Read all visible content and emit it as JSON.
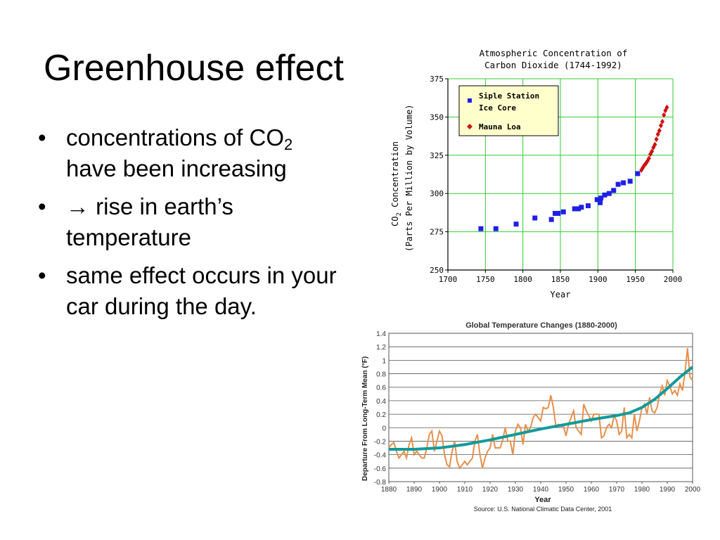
{
  "slide": {
    "title": "Greenhouse effect",
    "bullets": [
      {
        "text_before": "concentrations of CO",
        "subscript": "2",
        "text_after": " have been increasing"
      },
      {
        "arrow": "→",
        "text": " rise in earth’s temperature"
      },
      {
        "text": "same effect occurs in your car during the day."
      }
    ],
    "bullet_glyph": "•"
  },
  "chart_data": [
    {
      "type": "scatter",
      "title_lines": [
        "Atmospheric Concentration of",
        "Carbon Dioxide (1744-1992)"
      ],
      "xlabel": "Year",
      "ylabel_line1": "CO",
      "ylabel_sub": "2",
      "ylabel_line1_rest": " Concentration",
      "ylabel_line2": "(Parts Per Million by Volume)",
      "xlim": [
        1700,
        2000
      ],
      "ylim": [
        250,
        375
      ],
      "xticks": [
        1700,
        1750,
        1800,
        1850,
        1900,
        1950,
        2000
      ],
      "yticks": [
        250,
        275,
        300,
        325,
        350,
        375
      ],
      "grid": true,
      "grid_color": "#33cc33",
      "legend_position": "top-left",
      "legend_bg": "#ffffcc",
      "series": [
        {
          "name_lines": [
            "Siple Station",
            "Ice Core"
          ],
          "marker": "square",
          "color": "#1f1fe6",
          "points": [
            [
              1744,
              277
            ],
            [
              1764,
              277
            ],
            [
              1791,
              280
            ],
            [
              1816,
              284
            ],
            [
              1838,
              283
            ],
            [
              1843,
              287
            ],
            [
              1847,
              287
            ],
            [
              1854,
              288
            ],
            [
              1869,
              290
            ],
            [
              1874,
              290
            ],
            [
              1878,
              291
            ],
            [
              1887,
              292
            ],
            [
              1899,
              296
            ],
            [
              1903,
              294
            ],
            [
              1904,
              297
            ],
            [
              1909,
              299
            ],
            [
              1915,
              300
            ],
            [
              1921,
              302
            ],
            [
              1927,
              306
            ],
            [
              1934,
              307
            ],
            [
              1943,
              308
            ],
            [
              1953,
              313
            ]
          ]
        },
        {
          "name": "Mauna Loa",
          "marker": "diamond",
          "color": "#cc1111",
          "points": [
            [
              1958,
              315.3
            ],
            [
              1960,
              316.9
            ],
            [
              1962,
              318.5
            ],
            [
              1964,
              319.6
            ],
            [
              1966,
              321.1
            ],
            [
              1968,
              322.9
            ],
            [
              1970,
              325.7
            ],
            [
              1972,
              327.5
            ],
            [
              1974,
              330.1
            ],
            [
              1976,
              332.0
            ],
            [
              1978,
              335.4
            ],
            [
              1980,
              338.7
            ],
            [
              1982,
              341.1
            ],
            [
              1984,
              344.4
            ],
            [
              1986,
              347.0
            ],
            [
              1988,
              351.3
            ],
            [
              1990,
              354.2
            ],
            [
              1992,
              356.3
            ]
          ]
        }
      ]
    },
    {
      "type": "line",
      "title": "Global Temperature Changes (1880-2000)",
      "xlabel": "Year",
      "ylabel": "Departure From Long-Term Mean (°F)",
      "source": "Source: U.S. National Climatic Data Center, 2001",
      "xlim": [
        1880,
        2000
      ],
      "ylim": [
        -0.8,
        1.4
      ],
      "xticks": [
        1880,
        1890,
        1900,
        1910,
        1920,
        1930,
        1940,
        1950,
        1960,
        1970,
        1980,
        1990,
        2000
      ],
      "ytick_labels": [
        "1.4",
        "1.2",
        "1",
        "0.8",
        "0.6",
        "0.4",
        "0.2",
        "0",
        "-0.2",
        "-0.4",
        "-0.6",
        "-0.8"
      ],
      "grid": true,
      "annual": {
        "color": "#e8904a",
        "x": [
          1880,
          1881,
          1882,
          1883,
          1884,
          1885,
          1886,
          1887,
          1888,
          1889,
          1890,
          1891,
          1892,
          1893,
          1894,
          1895,
          1896,
          1897,
          1898,
          1899,
          1900,
          1901,
          1902,
          1903,
          1904,
          1905,
          1906,
          1907,
          1908,
          1909,
          1910,
          1911,
          1912,
          1913,
          1914,
          1915,
          1916,
          1917,
          1918,
          1919,
          1920,
          1921,
          1922,
          1923,
          1924,
          1925,
          1926,
          1927,
          1928,
          1929,
          1930,
          1931,
          1932,
          1933,
          1934,
          1935,
          1936,
          1937,
          1938,
          1939,
          1940,
          1941,
          1942,
          1943,
          1944,
          1945,
          1946,
          1947,
          1948,
          1949,
          1950,
          1951,
          1952,
          1953,
          1954,
          1955,
          1956,
          1957,
          1958,
          1959,
          1960,
          1961,
          1962,
          1963,
          1964,
          1965,
          1966,
          1967,
          1968,
          1969,
          1970,
          1971,
          1972,
          1973,
          1974,
          1975,
          1976,
          1977,
          1978,
          1979,
          1980,
          1981,
          1982,
          1983,
          1984,
          1985,
          1986,
          1987,
          1988,
          1989,
          1990,
          1991,
          1992,
          1993,
          1994,
          1995,
          1996,
          1997,
          1998,
          1999,
          2000
        ],
        "y": [
          -0.3,
          -0.25,
          -0.22,
          -0.35,
          -0.45,
          -0.4,
          -0.35,
          -0.45,
          -0.25,
          -0.15,
          -0.4,
          -0.35,
          -0.4,
          -0.45,
          -0.45,
          -0.3,
          -0.1,
          -0.05,
          -0.35,
          -0.2,
          -0.05,
          -0.12,
          -0.4,
          -0.55,
          -0.58,
          -0.35,
          -0.2,
          -0.5,
          -0.6,
          -0.55,
          -0.5,
          -0.55,
          -0.5,
          -0.45,
          -0.2,
          -0.1,
          -0.4,
          -0.6,
          -0.45,
          -0.35,
          -0.3,
          -0.1,
          -0.3,
          -0.3,
          -0.3,
          -0.18,
          0.0,
          -0.2,
          -0.2,
          -0.4,
          -0.05,
          0.05,
          0.0,
          -0.25,
          0.05,
          -0.05,
          0.0,
          0.15,
          0.2,
          0.15,
          0.1,
          0.3,
          0.28,
          0.3,
          0.48,
          0.3,
          0.02,
          0.05,
          0.02,
          0.02,
          -0.12,
          0.05,
          0.15,
          0.25,
          0.0,
          -0.05,
          -0.1,
          0.35,
          0.25,
          0.18,
          0.1,
          0.2,
          0.2,
          0.2,
          -0.15,
          -0.12,
          0.0,
          0.05,
          0.0,
          0.18,
          0.1,
          -0.1,
          -0.05,
          0.3,
          -0.15,
          -0.1,
          -0.15,
          0.2,
          -0.05,
          0.1,
          0.3,
          0.35,
          0.2,
          0.45,
          0.25,
          0.22,
          0.3,
          0.5,
          0.62,
          0.48,
          0.7,
          0.62,
          0.5,
          0.55,
          0.48,
          0.65,
          0.55,
          0.82,
          1.18,
          0.75,
          0.7
        ]
      },
      "trend": {
        "color": "#119a9a",
        "x": [
          1880,
          1890,
          1900,
          1910,
          1920,
          1930,
          1940,
          1950,
          1960,
          1970,
          1975,
          1980,
          1985,
          1990,
          1995,
          2000
        ],
        "y": [
          -0.32,
          -0.32,
          -0.3,
          -0.25,
          -0.18,
          -0.1,
          -0.02,
          0.05,
          0.12,
          0.18,
          0.22,
          0.3,
          0.42,
          0.58,
          0.75,
          0.9
        ]
      }
    }
  ]
}
